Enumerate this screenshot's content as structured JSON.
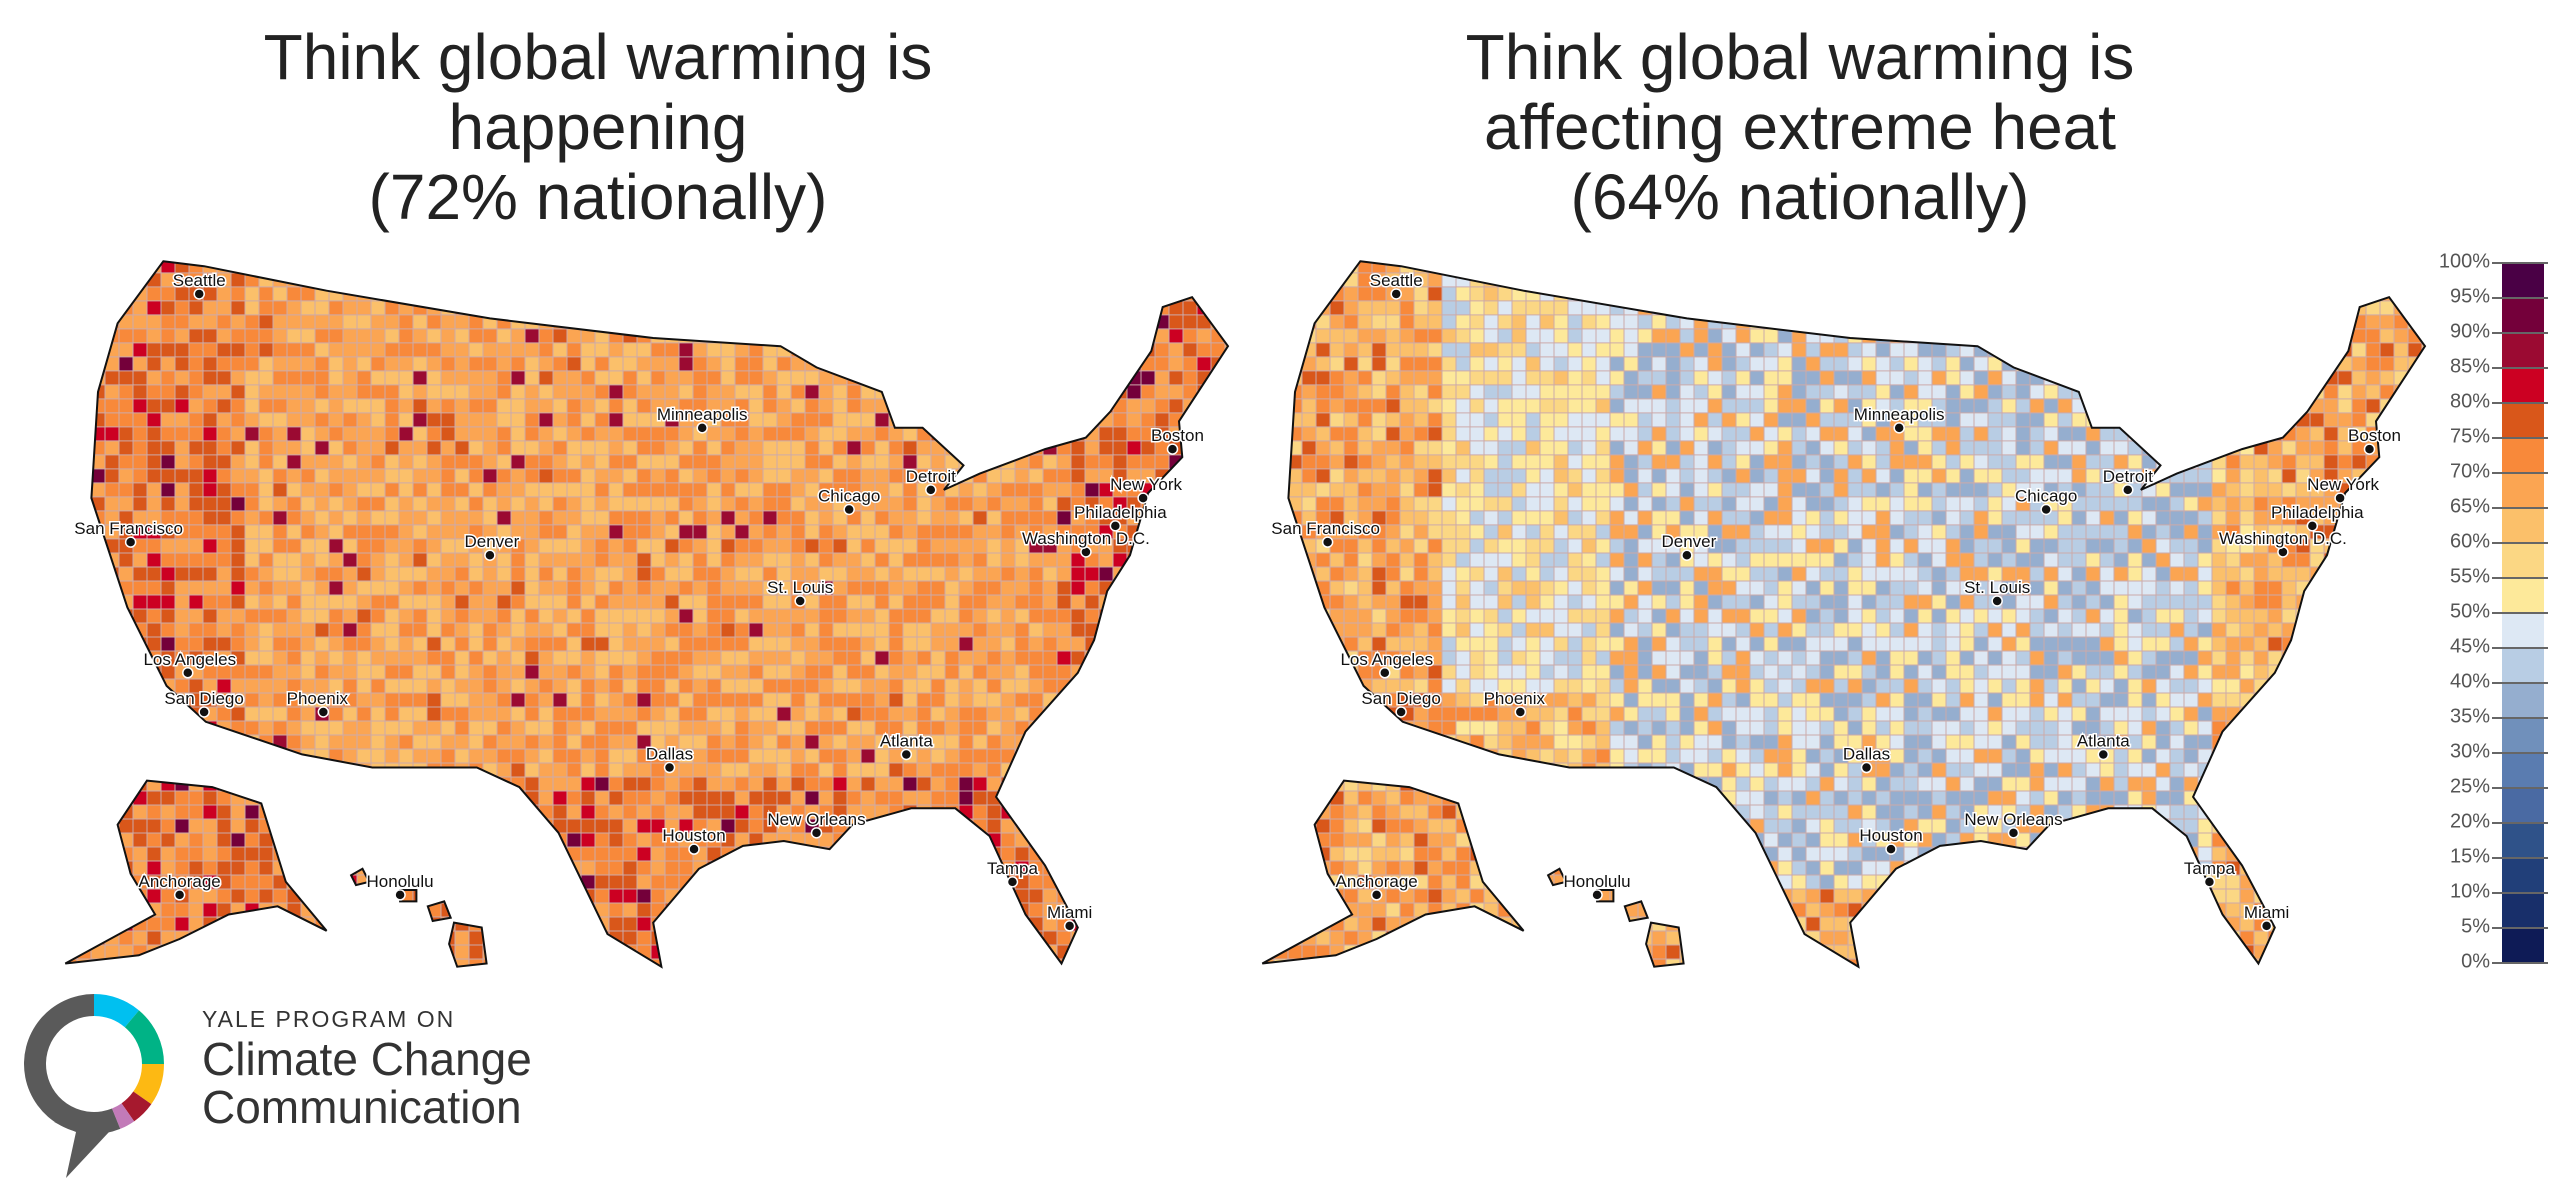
{
  "maps": [
    {
      "title_lines": [
        "Think global warming is",
        "happening",
        "(72% nationally)"
      ],
      "national_percent": 72
    },
    {
      "title_lines": [
        "Think global warming is",
        "affecting extreme heat",
        "(64% nationally)"
      ],
      "national_percent": 64
    }
  ],
  "cities": [
    {
      "name": "Seattle"
    },
    {
      "name": "San Francisco"
    },
    {
      "name": "Los Angeles"
    },
    {
      "name": "San Diego"
    },
    {
      "name": "Phoenix"
    },
    {
      "name": "Denver"
    },
    {
      "name": "Dallas"
    },
    {
      "name": "Houston"
    },
    {
      "name": "St. Louis"
    },
    {
      "name": "Chicago"
    },
    {
      "name": "Minneapolis"
    },
    {
      "name": "Detroit"
    },
    {
      "name": "Atlanta"
    },
    {
      "name": "New Orleans"
    },
    {
      "name": "Tampa"
    },
    {
      "name": "Miami"
    },
    {
      "name": "Washington D.C."
    },
    {
      "name": "Philadelphia"
    },
    {
      "name": "New York"
    },
    {
      "name": "Boston"
    },
    {
      "name": "Anchorage"
    },
    {
      "name": "Honolulu"
    }
  ],
  "legend": {
    "labels": [
      "100%",
      "95%",
      "90%",
      "85%",
      "80%",
      "75%",
      "70%",
      "65%",
      "60%",
      "55%",
      "50%",
      "45%",
      "40%",
      "35%",
      "30%",
      "25%",
      "20%",
      "15%",
      "10%",
      "5%",
      "0%"
    ],
    "colors": [
      "#4a0045",
      "#74003a",
      "#9b0a32",
      "#cc0022",
      "#d9571a",
      "#f8893a",
      "#fba552",
      "#fbc06a",
      "#fbd784",
      "#fde99a",
      "#dde8f4",
      "#b8cde4",
      "#95aecf",
      "#7090bb",
      "#5a7cb0",
      "#4a6aa3",
      "#2f5289",
      "#213f79",
      "#182f6a",
      "#0e1b56"
    ]
  },
  "logo": {
    "line1": "YALE PROGRAM ON",
    "line2": "Climate Change",
    "line3": "Communication",
    "colors": [
      "#5a5a5a",
      "#00c0f0",
      "#00b386",
      "#fdb913",
      "#a6192e",
      "#c27ab8"
    ]
  }
}
